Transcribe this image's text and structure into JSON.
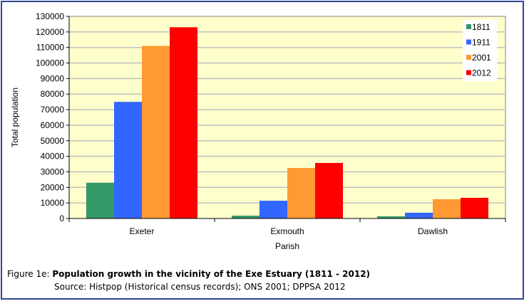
{
  "chart_data": {
    "type": "bar",
    "title": "",
    "xlabel": "Parish",
    "ylabel": "Total population",
    "categories": [
      "Exeter",
      "Exmouth",
      "Dawlish"
    ],
    "series": [
      {
        "name": "1811",
        "color": "#339966",
        "values": [
          23000,
          1800,
          1400
        ]
      },
      {
        "name": "1911",
        "color": "#3366ff",
        "values": [
          75000,
          11400,
          3700
        ]
      },
      {
        "name": "2001",
        "color": "#ff9933",
        "values": [
          111000,
          32500,
          12400
        ]
      },
      {
        "name": "2012",
        "color": "#ff0000",
        "values": [
          123000,
          35700,
          13300
        ]
      }
    ],
    "ylim": [
      0,
      130000
    ],
    "yticks": [
      0,
      10000,
      20000,
      30000,
      40000,
      50000,
      60000,
      70000,
      80000,
      90000,
      100000,
      110000,
      120000,
      130000
    ],
    "grid": true,
    "legend_position": "top-right",
    "plot_background": "#ffffcc"
  },
  "caption": {
    "prefix": "Figure 1e: ",
    "title": "Population growth  in the vicinity of the Exe Estuary  (1811  - 2012)",
    "source": "Source: Histpop (Historical census records); ONS 2001; DPPSA 2012"
  }
}
